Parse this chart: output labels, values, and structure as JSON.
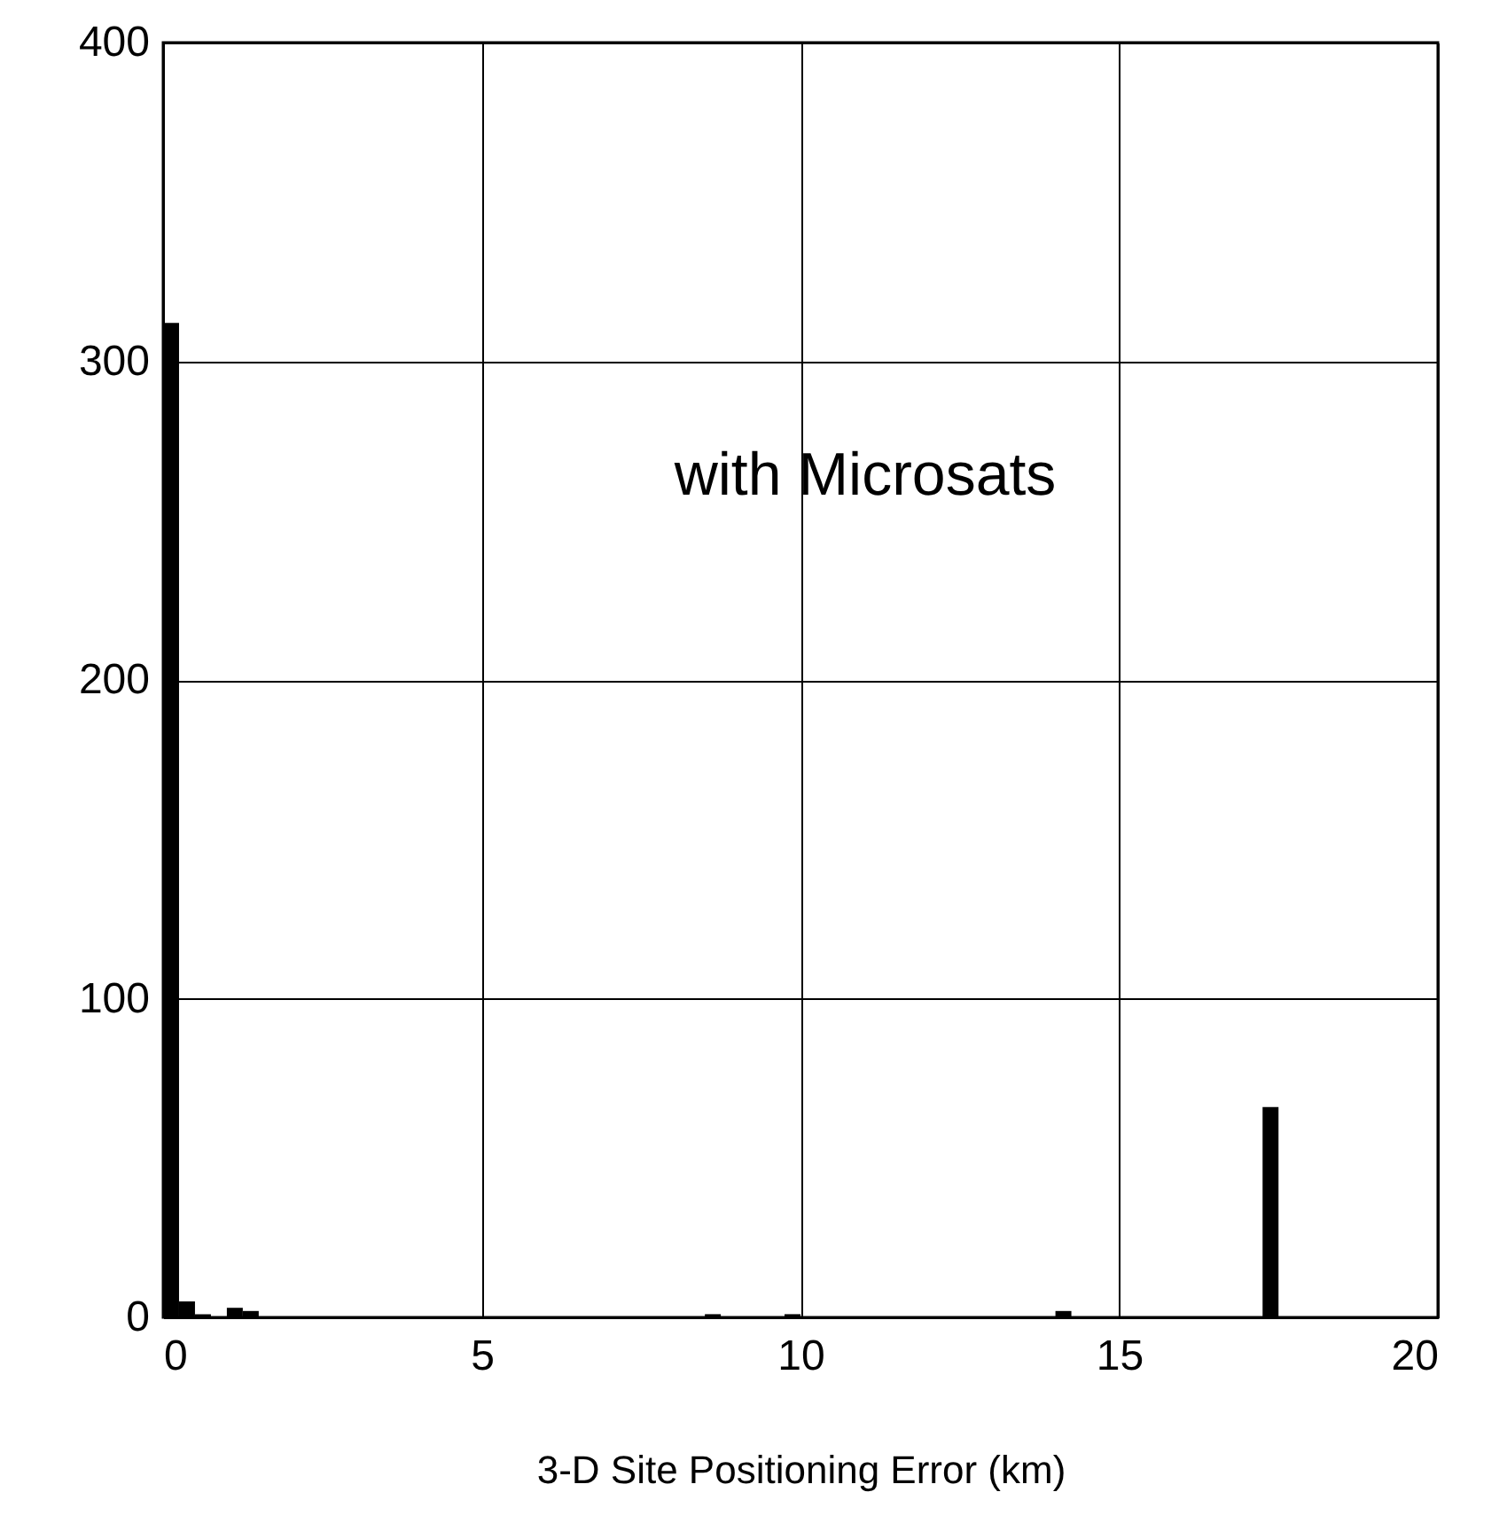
{
  "chart_data": {
    "type": "histogram",
    "xlabel": "3-D Site Positioning Error (km)",
    "bins": [
      0,
      0.25,
      0.5,
      0.75,
      1,
      1.25,
      1.5,
      1.75,
      2,
      2.25,
      2.5,
      2.75,
      3,
      3.25,
      3.5,
      3.75,
      4,
      4.25,
      4.5,
      4.75,
      5,
      5.25,
      5.5,
      5.75,
      6,
      6.25,
      6.5,
      6.75,
      7,
      7.25,
      7.5,
      7.75,
      8,
      8.25,
      8.5,
      8.75,
      9,
      9.25,
      9.5,
      9.75,
      10,
      10.25,
      10.5,
      10.75,
      11,
      11.25,
      11.5,
      11.75,
      12,
      12.25,
      12.5,
      12.75,
      13,
      13.25,
      13.5,
      13.75,
      14,
      14.25,
      14.5,
      14.75,
      15,
      15.25,
      15.5,
      15.75,
      16,
      16.25,
      16.5,
      16.75,
      17,
      17.25,
      17.5,
      17.75,
      18,
      18.25,
      18.5,
      18.75,
      19,
      19.25,
      19.5,
      19.75,
      20
    ],
    "values": [
      312,
      5,
      1,
      0,
      3,
      2,
      0,
      0,
      0,
      0,
      0,
      0,
      0,
      0,
      0,
      0,
      0,
      0,
      0,
      0,
      0,
      0,
      0,
      0,
      0,
      0,
      0,
      0,
      0,
      0,
      0,
      0,
      0,
      0,
      1,
      0,
      0,
      0,
      0,
      1,
      0,
      0,
      0,
      0,
      0,
      0,
      0,
      0,
      0,
      0,
      0,
      0,
      0,
      0,
      0,
      0,
      2,
      0,
      0,
      0,
      0,
      0,
      0,
      0,
      0,
      0,
      0,
      0,
      0,
      66,
      0,
      0,
      0,
      0,
      0,
      0,
      0,
      0,
      0,
      0
    ],
    "color": "#000000",
    "xlim": [
      0,
      20
    ],
    "xticks": [
      0,
      5,
      10,
      15,
      20
    ],
    "ylim": [
      0,
      400
    ],
    "yticks": [
      0,
      100,
      200,
      300,
      400
    ],
    "grid": true,
    "annotations": [
      "with Microsats"
    ]
  }
}
